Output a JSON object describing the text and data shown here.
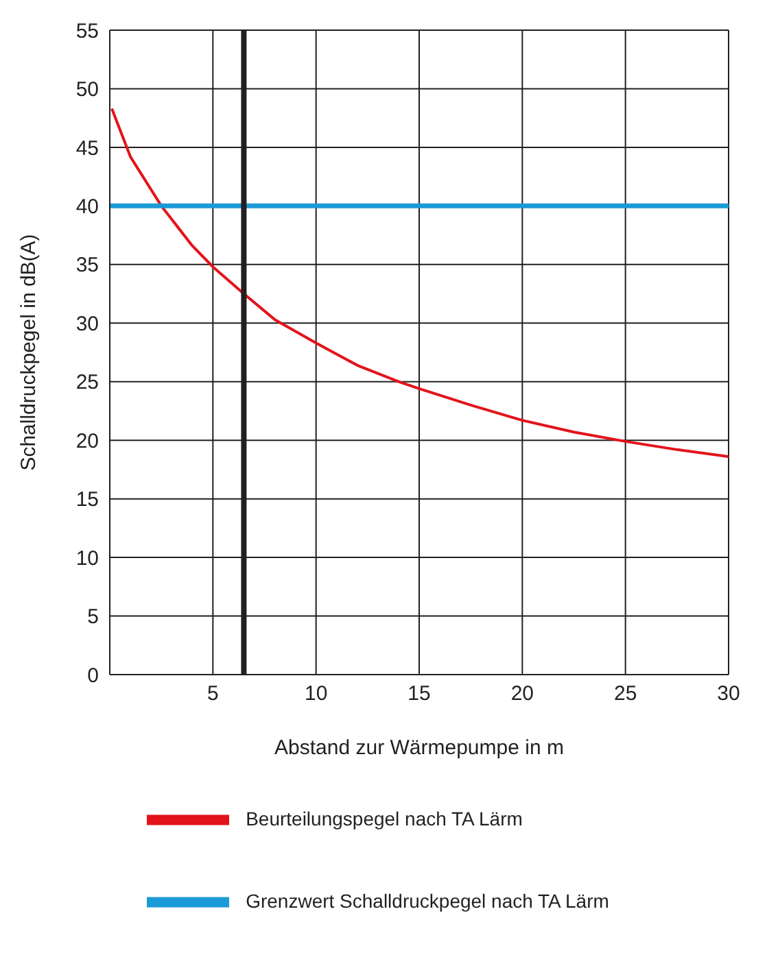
{
  "chart_data": {
    "type": "line",
    "xlabel": "Abstand zur Wärmepumpe in m",
    "ylabel": "Schalldruckpegel in dB(A)",
    "xlim": [
      0,
      30
    ],
    "xticks": [
      5,
      10,
      15,
      20,
      25,
      30
    ],
    "ylim": [
      0,
      55
    ],
    "yticks": [
      0,
      5,
      10,
      15,
      20,
      25,
      30,
      35,
      40,
      45,
      50,
      55
    ],
    "grid": true,
    "legend": "bottom",
    "marker": "none",
    "line_style": "solid",
    "series": [
      {
        "name": "Beurteilungspegel nach TA Lärm",
        "color": "#e3131b",
        "x": [
          0.1,
          1,
          2.5,
          4,
          5,
          6.5,
          8,
          10,
          12,
          14,
          15,
          17.5,
          20,
          22.5,
          25,
          27.5,
          30
        ],
        "values": [
          48.3,
          44.2,
          40,
          36.6,
          34.8,
          32.5,
          30.3,
          28.3,
          26.4,
          25,
          24.4,
          23,
          21.7,
          20.7,
          19.9,
          19.2,
          18.6
        ]
      },
      {
        "name": "Grenzwert Schalldruckpegel nach TA Lärm",
        "color": "#1a9ad6",
        "x": [
          0,
          30
        ],
        "values": [
          40,
          40
        ]
      }
    ],
    "ref_lines": [
      {
        "axis": "x",
        "value": 6.5,
        "color": "#231f20"
      }
    ]
  }
}
